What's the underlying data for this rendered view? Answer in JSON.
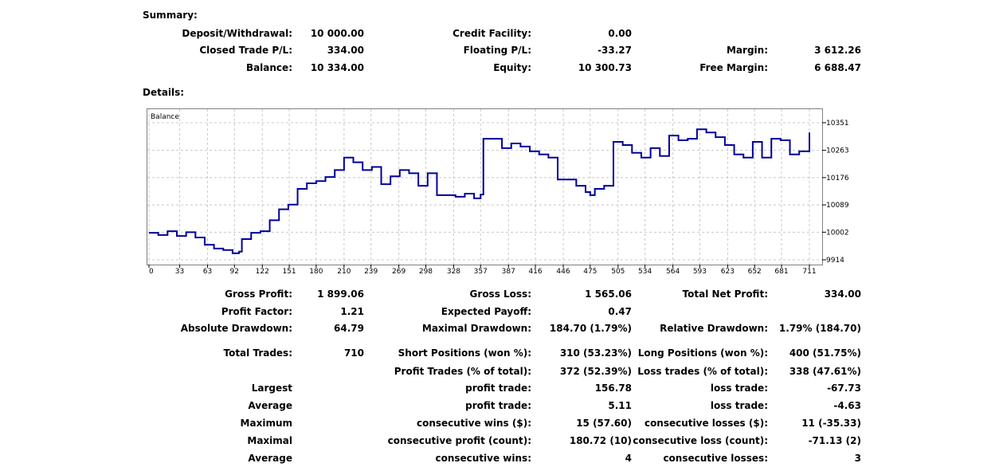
{
  "summary": {
    "heading": "Summary:",
    "rows": [
      [
        {
          "label": "Deposit/Withdrawal:",
          "value": "10 000.00"
        },
        {
          "label": "Credit Facility:",
          "value": "0.00"
        },
        {
          "label": "",
          "value": ""
        }
      ],
      [
        {
          "label": "Closed Trade P/L:",
          "value": "334.00"
        },
        {
          "label": "Floating P/L:",
          "value": "-33.27"
        },
        {
          "label": "Margin:",
          "value": "3 612.26"
        }
      ],
      [
        {
          "label": "Balance:",
          "value": "10 334.00"
        },
        {
          "label": "Equity:",
          "value": "10 300.73"
        },
        {
          "label": "Free Margin:",
          "value": "6 688.47"
        }
      ]
    ]
  },
  "details": {
    "heading": "Details:",
    "rows": [
      [
        {
          "label": "Gross Profit:",
          "value": "1 899.06"
        },
        {
          "label": "Gross Loss:",
          "value": "1 565.06"
        },
        {
          "label": "Total Net Profit:",
          "value": "334.00"
        }
      ],
      [
        {
          "label": "Profit Factor:",
          "value": "1.21"
        },
        {
          "label": "Expected Payoff:",
          "value": "0.47"
        },
        {
          "label": "",
          "value": ""
        }
      ],
      [
        {
          "label": "Absolute Drawdown:",
          "value": "64.79"
        },
        {
          "label": "Maximal Drawdown:",
          "value": "184.70 (1.79%)"
        },
        {
          "label": "Relative Drawdown:",
          "value": "1.79% (184.70)"
        }
      ],
      [
        {
          "label": "Total Trades:",
          "value": "710"
        },
        {
          "label": "Short Positions (won %):",
          "value": "310 (53.23%)"
        },
        {
          "label": "Long Positions (won %):",
          "value": "400 (51.75%)"
        }
      ],
      [
        {
          "label": "",
          "value": ""
        },
        {
          "label": "Profit Trades (% of total):",
          "value": "372 (52.39%)"
        },
        {
          "label": "Loss trades (% of total):",
          "value": "338 (47.61%)"
        }
      ],
      [
        {
          "label": "Largest",
          "value": ""
        },
        {
          "label": "profit trade:",
          "value": "156.78"
        },
        {
          "label": "loss trade:",
          "value": "-67.73"
        }
      ],
      [
        {
          "label": "Average",
          "value": ""
        },
        {
          "label": "profit trade:",
          "value": "5.11"
        },
        {
          "label": "loss trade:",
          "value": "-4.63"
        }
      ],
      [
        {
          "label": "Maximum",
          "value": ""
        },
        {
          "label": "consecutive wins ($):",
          "value": "15 (57.60)"
        },
        {
          "label": "consecutive losses ($):",
          "value": "11 (-35.33)"
        }
      ],
      [
        {
          "label": "Maximal",
          "value": ""
        },
        {
          "label": "consecutive profit (count):",
          "value": "180.72 (10)"
        },
        {
          "label": "consecutive loss (count):",
          "value": "-71.13 (2)"
        }
      ],
      [
        {
          "label": "Average",
          "value": ""
        },
        {
          "label": "consecutive wins:",
          "value": "4"
        },
        {
          "label": "consecutive losses:",
          "value": "3"
        }
      ]
    ]
  },
  "chart_data": {
    "type": "line",
    "series": [
      {
        "name": "Balance",
        "x": [
          0,
          10,
          20,
          30,
          40,
          50,
          60,
          70,
          80,
          90,
          97,
          100,
          110,
          120,
          130,
          140,
          150,
          160,
          170,
          180,
          190,
          200,
          210,
          220,
          230,
          240,
          250,
          260,
          270,
          280,
          290,
          300,
          310,
          320,
          330,
          340,
          350,
          357,
          360,
          370,
          380,
          390,
          400,
          410,
          420,
          430,
          440,
          450,
          460,
          470,
          475,
          480,
          490,
          500,
          510,
          520,
          530,
          540,
          550,
          560,
          570,
          580,
          590,
          600,
          610,
          620,
          630,
          640,
          650,
          660,
          670,
          680,
          690,
          700,
          711
        ],
        "y": [
          10000,
          9993,
          10005,
          9990,
          10002,
          9985,
          9962,
          9950,
          9945,
          9935,
          9940,
          9980,
          10000,
          10005,
          10040,
          10075,
          10090,
          10140,
          10158,
          10165,
          10178,
          10200,
          10240,
          10225,
          10200,
          10210,
          10155,
          10180,
          10200,
          10190,
          10150,
          10190,
          10120,
          10120,
          10115,
          10125,
          10110,
          10122,
          10300,
          10300,
          10270,
          10285,
          10275,
          10260,
          10250,
          10240,
          10170,
          10170,
          10150,
          10130,
          10120,
          10140,
          10150,
          10290,
          10280,
          10255,
          10240,
          10270,
          10245,
          10310,
          10295,
          10300,
          10330,
          10320,
          10305,
          10280,
          10250,
          10240,
          10290,
          10240,
          10300,
          10295,
          10250,
          10260,
          10320
        ]
      }
    ],
    "x_ticks": [
      0,
      33,
      63,
      92,
      122,
      151,
      180,
      210,
      239,
      269,
      298,
      328,
      357,
      387,
      416,
      446,
      475,
      505,
      534,
      564,
      593,
      623,
      652,
      681,
      711
    ],
    "y_ticks": [
      9914,
      10002,
      10089,
      10176,
      10263,
      10351
    ],
    "xlim": [
      0,
      723
    ],
    "ylim": [
      9914,
      10385
    ],
    "grid": true,
    "color": "#00009C"
  }
}
